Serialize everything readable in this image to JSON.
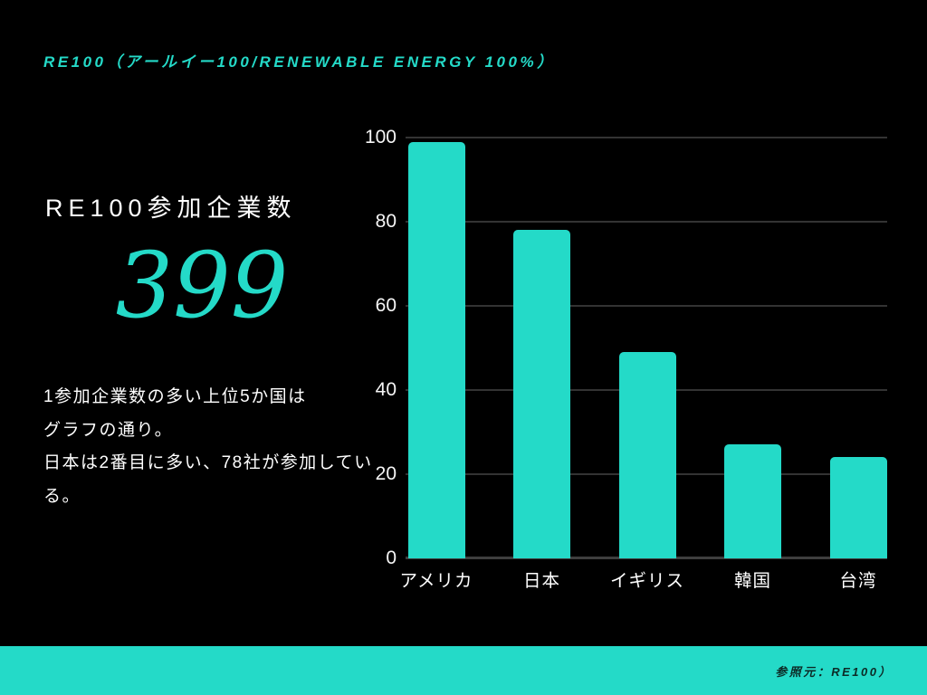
{
  "slide": {
    "title": "RE100（アールイー100/RENEWABLE ENERGY 100%）",
    "stat_label": "RE100参加企業数",
    "stat_value": "399",
    "body_text": "1参加企業数の多い上位5か国は\nグラフの通り。\n日本は2番目に多い、78社が参加してい\nる。",
    "footer_source": "参照元：RE100）"
  },
  "colors": {
    "accent": "#24dac8",
    "background": "#000000",
    "text": "#ffffff",
    "gridline": "#333333",
    "footer_text": "#0c2a26"
  },
  "chart_data": {
    "type": "bar",
    "categories": [
      "アメリカ",
      "日本",
      "イギリス",
      "韓国",
      "台湾"
    ],
    "values": [
      99,
      78,
      49,
      27,
      24
    ],
    "title": "",
    "xlabel": "",
    "ylabel": "",
    "ylim": [
      0,
      100
    ],
    "yticks": [
      0,
      20,
      40,
      60,
      80,
      100
    ],
    "grid": true,
    "legend": false,
    "bar_color": "#24dac8"
  }
}
